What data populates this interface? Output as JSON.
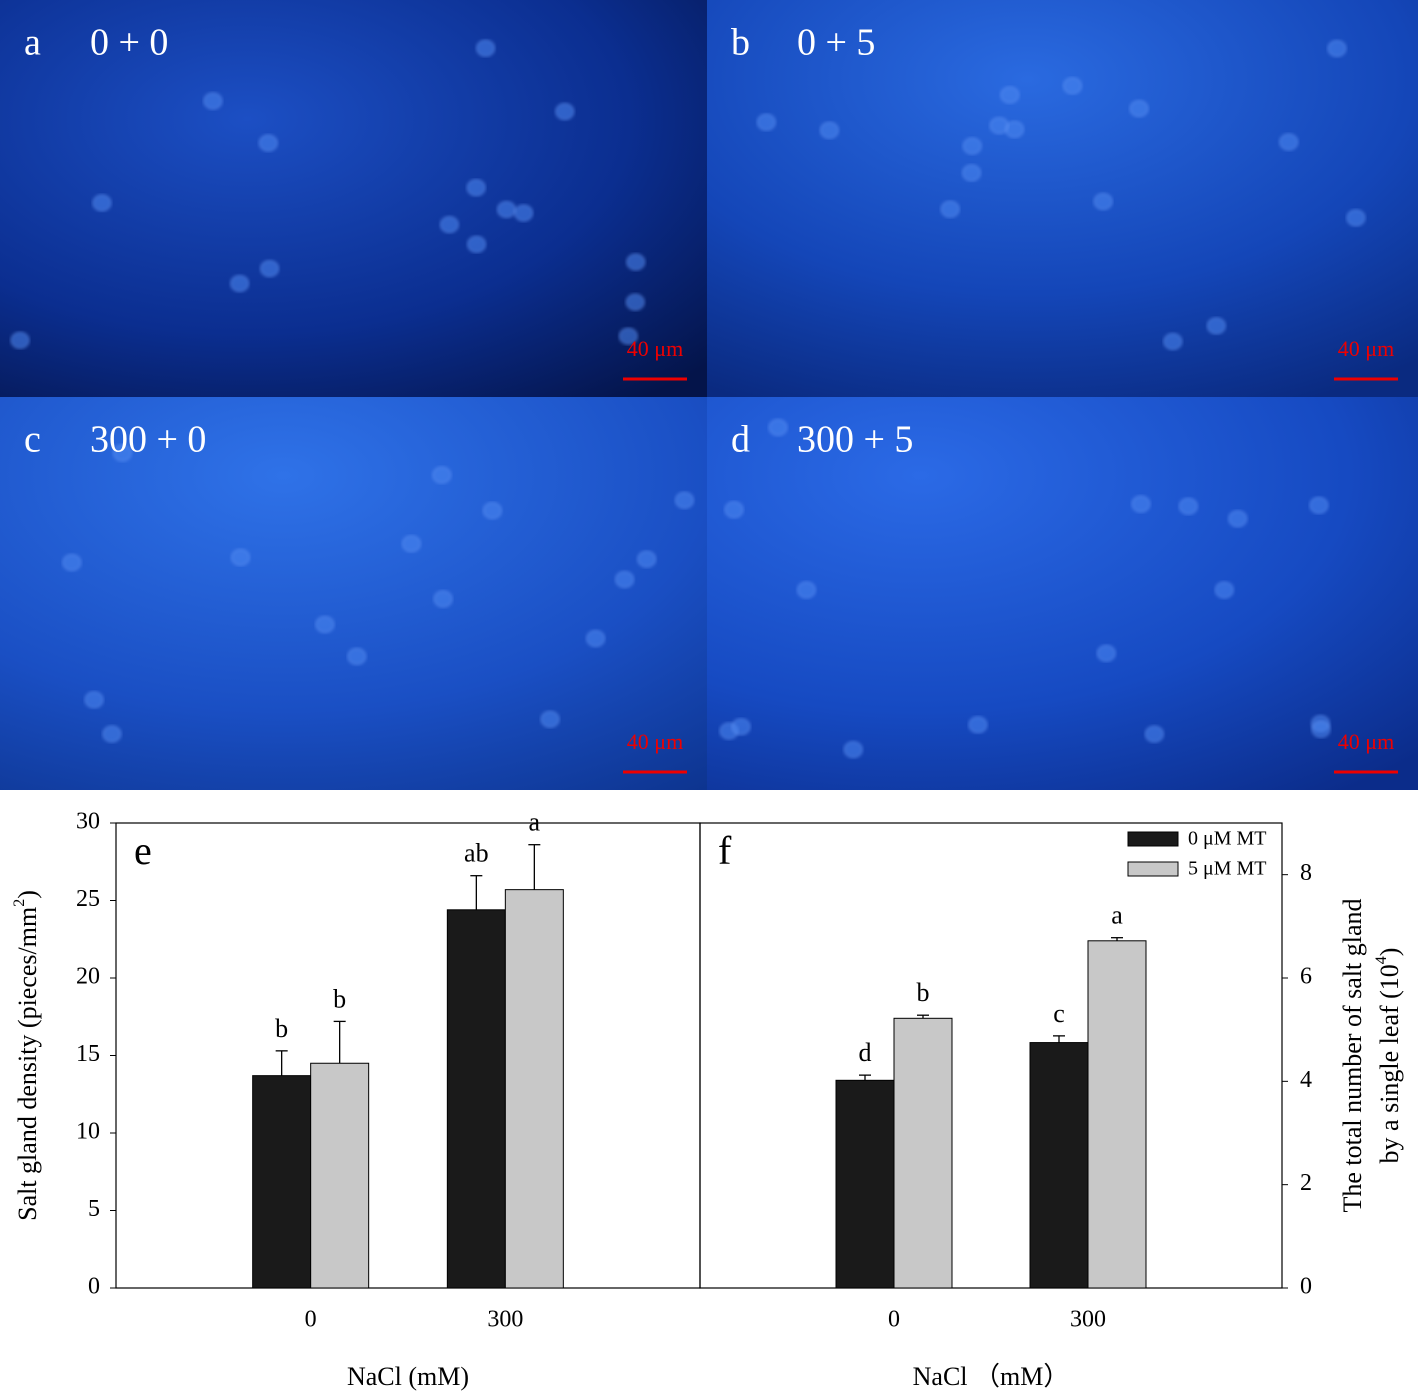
{
  "images": [
    {
      "letter": "a",
      "label": "0 + 0",
      "scale_bar": "40 μm"
    },
    {
      "letter": "b",
      "label": "0 + 5",
      "scale_bar": "40 μm"
    },
    {
      "letter": "c",
      "label": "300 + 0",
      "scale_bar": "40 μm"
    },
    {
      "letter": "d",
      "label": "300 + 5",
      "scale_bar": "40 μm"
    }
  ],
  "chart_data": [
    {
      "type": "bar",
      "panel": "e",
      "categories": [
        "0",
        "300"
      ],
      "series": [
        {
          "color": "#1a1a1a",
          "values": [
            13.7,
            24.4
          ],
          "errors": [
            1.6,
            2.2
          ],
          "annotations": [
            "b",
            "ab"
          ]
        },
        {
          "color": "#c8c8c8",
          "values": [
            14.5,
            25.7
          ],
          "errors": [
            2.7,
            2.9
          ],
          "annotations": [
            "b",
            "a"
          ]
        }
      ],
      "ylim": [
        0,
        30
      ],
      "yticks": [
        0,
        5,
        10,
        15,
        20,
        25,
        30
      ],
      "y_axis_side": "left",
      "xlabel": "NaCl (mM)",
      "ylabel": {
        "main": "Salt gland density (pieces/mm",
        "sup": "2",
        "end": ")"
      }
    },
    {
      "type": "bar",
      "panel": "f",
      "categories": [
        "0",
        "300"
      ],
      "series": [
        {
          "name": "0 μM MT",
          "color": "#1a1a1a",
          "values": [
            4.02,
            4.75
          ],
          "errors": [
            0.1,
            0.13
          ],
          "annotations": [
            "d",
            "c"
          ]
        },
        {
          "name": "5 μM MT",
          "color": "#c8c8c8",
          "values": [
            5.22,
            6.72
          ],
          "errors": [
            0.06,
            0.06
          ],
          "annotations": [
            "b",
            "a"
          ]
        }
      ],
      "ylim": [
        0,
        9
      ],
      "yticks": [
        0,
        2,
        4,
        6,
        8
      ],
      "y_axis_side": "right",
      "legend": "upper right",
      "xlabel": "NaCl （mM）",
      "ylabel": {
        "line1": "The total number of salt gland",
        "main": "by a single leaf (10",
        "sup": "4",
        "end": ")"
      }
    }
  ]
}
